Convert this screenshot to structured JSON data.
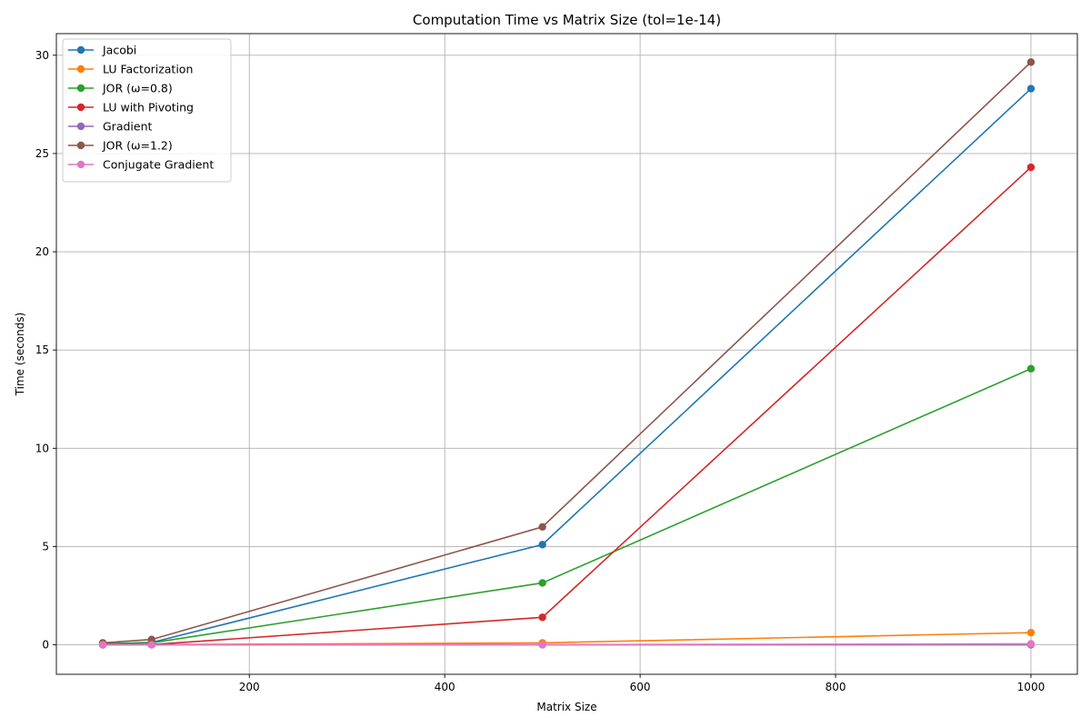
{
  "chart_data": {
    "type": "line",
    "title": "Computation Time vs Matrix Size (tol=1e-14)",
    "xlabel": "Matrix Size",
    "ylabel": "Time (seconds)",
    "xlim": [
      2.5,
      1047.5
    ],
    "ylim": [
      -1.5,
      31.1
    ],
    "xticks": [
      200,
      400,
      600,
      800,
      1000
    ],
    "yticks": [
      0,
      5,
      10,
      15,
      20,
      25,
      30
    ],
    "grid": true,
    "legend_position": "top-left",
    "x": [
      50,
      100,
      500,
      1000
    ],
    "series": [
      {
        "name": "Jacobi",
        "color": "#1f77b4",
        "values": [
          0.05,
          0.12,
          5.1,
          28.3
        ]
      },
      {
        "name": "LU Factorization",
        "color": "#ff7f0e",
        "values": [
          0.0,
          0.01,
          0.1,
          0.62
        ]
      },
      {
        "name": "JOR (ω=0.8)",
        "color": "#2ca02c",
        "values": [
          0.05,
          0.1,
          3.15,
          14.05
        ]
      },
      {
        "name": "LU with Pivoting",
        "color": "#d62728",
        "values": [
          0.0,
          0.01,
          1.4,
          24.3
        ]
      },
      {
        "name": "Gradient",
        "color": "#9467bd",
        "values": [
          0.0,
          0.0,
          0.0,
          0.0
        ]
      },
      {
        "name": "JOR (ω=1.2)",
        "color": "#8c564b",
        "values": [
          0.1,
          0.27,
          6.0,
          29.65
        ]
      },
      {
        "name": "Conjugate Gradient",
        "color": "#e377c2",
        "values": [
          0.0,
          0.0,
          0.01,
          0.05
        ]
      }
    ]
  }
}
